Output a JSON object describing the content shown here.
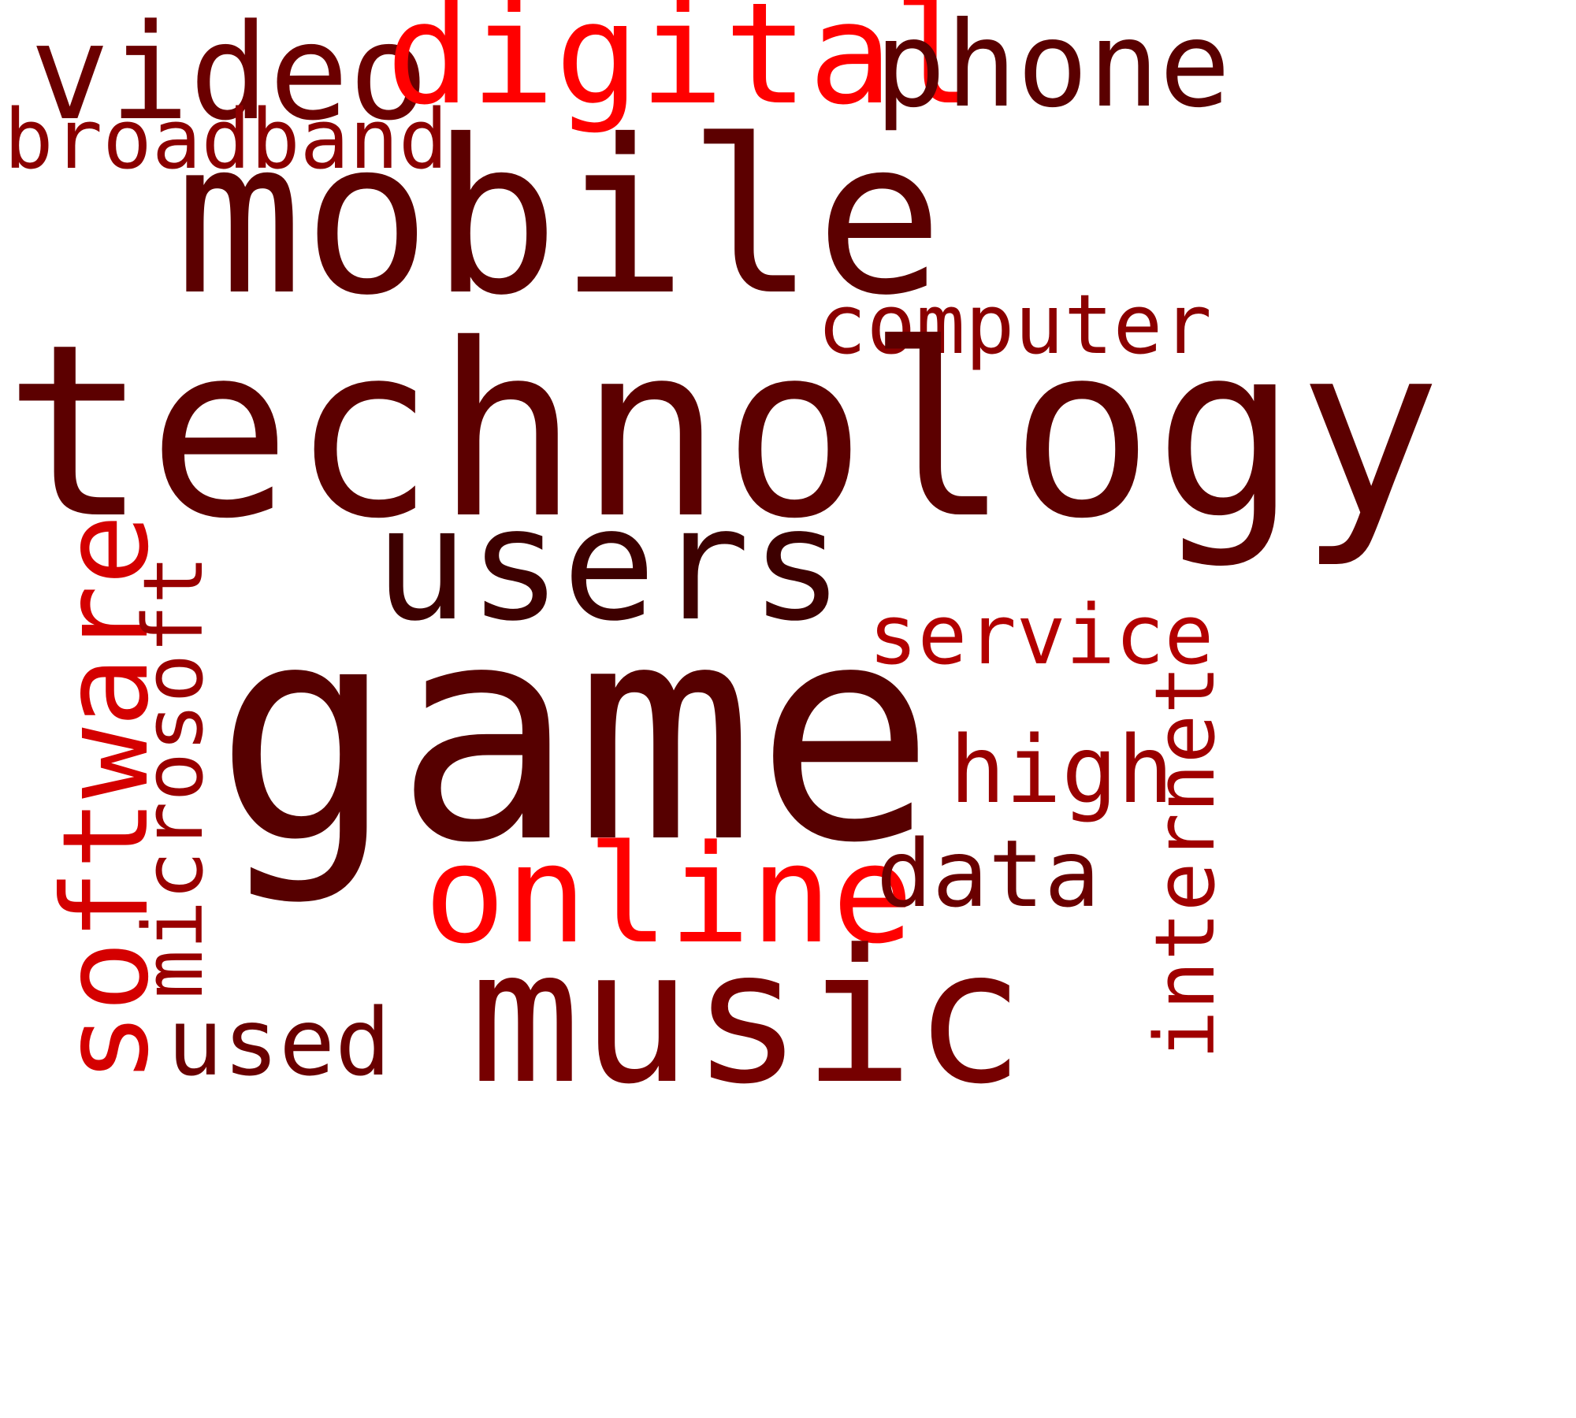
{
  "words": {
    "video": {
      "text": "video",
      "color": "#6b0000"
    },
    "digital": {
      "text": "digital",
      "color": "#ff0000"
    },
    "phone": {
      "text": "phone",
      "color": "#5a0000"
    },
    "broadband": {
      "text": "broadband",
      "color": "#8b0000"
    },
    "mobile": {
      "text": "mobile",
      "color": "#5c0000"
    },
    "computer": {
      "text": "computer",
      "color": "#8b0000"
    },
    "technology": {
      "text": "technology",
      "color": "#5c0000"
    },
    "users": {
      "text": "users",
      "color": "#3d0000"
    },
    "software": {
      "text": "software",
      "color": "#d40000"
    },
    "microsoft": {
      "text": "microsoft",
      "color": "#990000"
    },
    "service": {
      "text": "service",
      "color": "#b30000"
    },
    "game": {
      "text": "game",
      "color": "#560000"
    },
    "internet": {
      "text": "internet",
      "color": "#a00000"
    },
    "high": {
      "text": "high",
      "color": "#990000"
    },
    "online": {
      "text": "online",
      "color": "#ff0000"
    },
    "data": {
      "text": "data",
      "color": "#6a0000"
    },
    "music": {
      "text": "music",
      "color": "#760000"
    },
    "used": {
      "text": "used",
      "color": "#6a0000"
    }
  }
}
